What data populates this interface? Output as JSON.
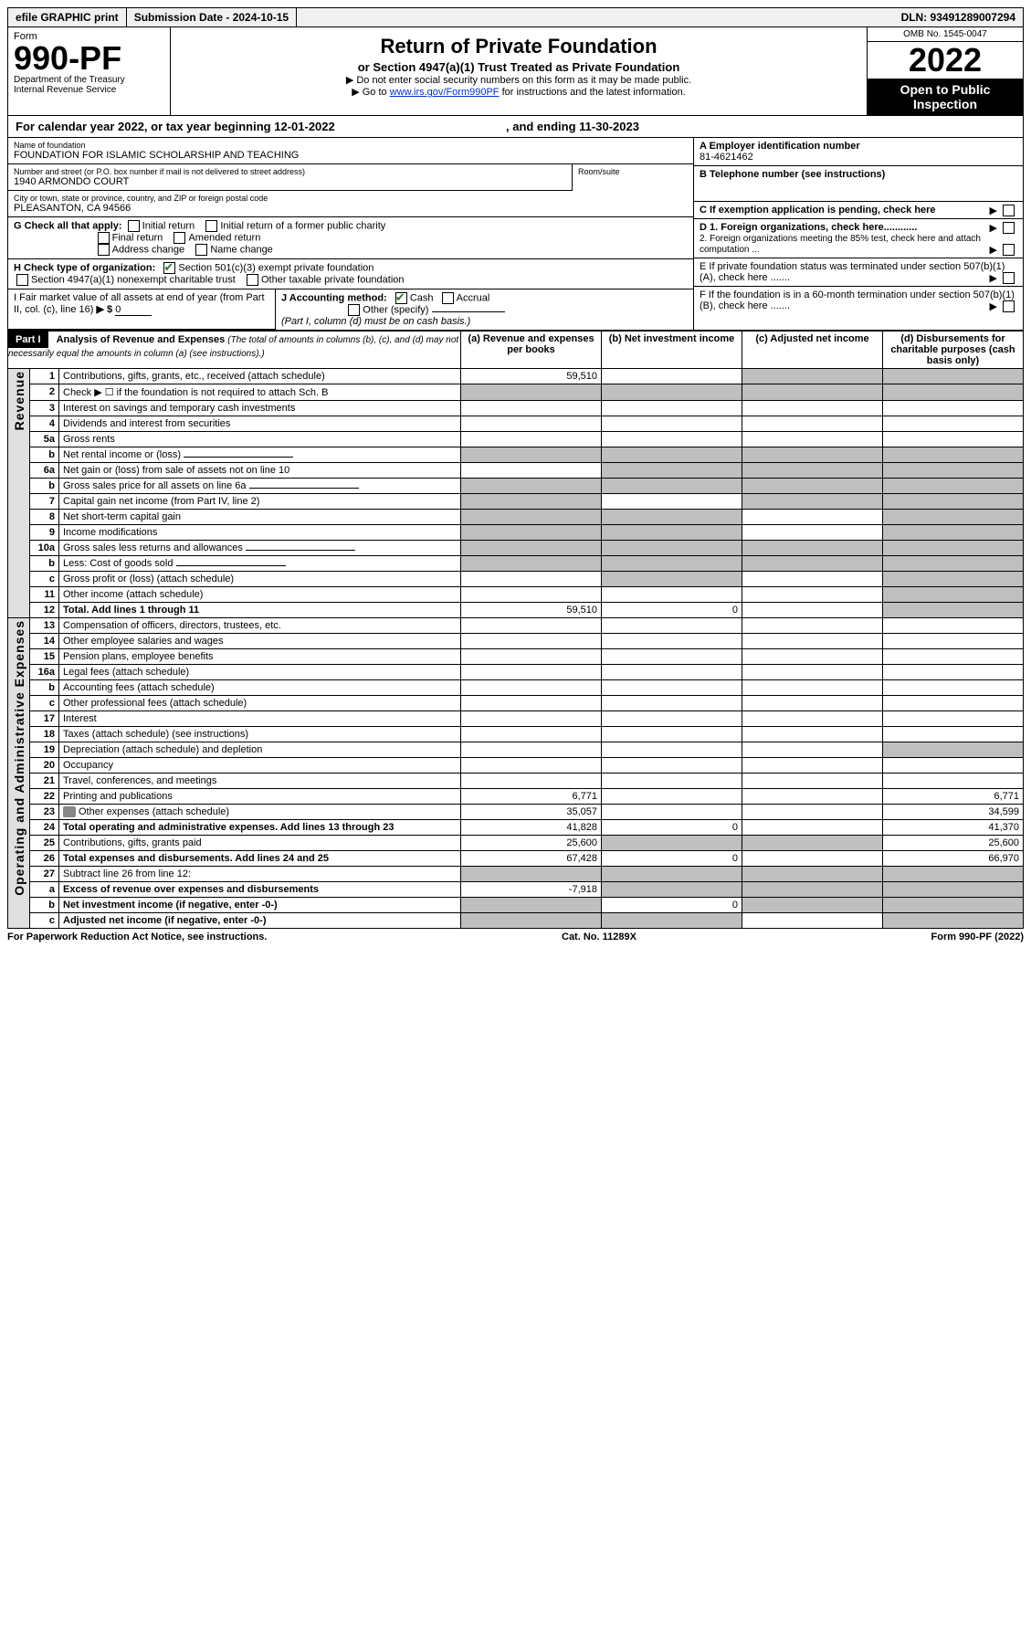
{
  "top_bar": {
    "efile": "efile GRAPHIC print",
    "submission": "Submission Date - 2024-10-15",
    "dln": "DLN: 93491289007294"
  },
  "header": {
    "form_label": "Form",
    "form_number": "990-PF",
    "dept1": "Department of the Treasury",
    "dept2": "Internal Revenue Service",
    "title": "Return of Private Foundation",
    "subtitle": "or Section 4947(a)(1) Trust Treated as Private Foundation",
    "instr1": "▶ Do not enter social security numbers on this form as it may be made public.",
    "instr2_pre": "▶ Go to ",
    "instr2_link": "www.irs.gov/Form990PF",
    "instr2_post": " for instructions and the latest information.",
    "omb": "OMB No. 1545-0047",
    "tax_year": "2022",
    "open_public": "Open to Public Inspection"
  },
  "cal_year": {
    "prefix": "For calendar year 2022, or tax year beginning ",
    "begin": "12-01-2022",
    "mid": " , and ending ",
    "end": "11-30-2023"
  },
  "entity": {
    "name_label": "Name of foundation",
    "name": "FOUNDATION FOR ISLAMIC SCHOLARSHIP AND TEACHING",
    "addr_label": "Number and street (or P.O. box number if mail is not delivered to street address)",
    "addr": "1940 ARMONDO COURT",
    "room_label": "Room/suite",
    "city_label": "City or town, state or province, country, and ZIP or foreign postal code",
    "city": "PLEASANTON, CA  94566",
    "ein_label": "A Employer identification number",
    "ein": "81-4621462",
    "phone_label": "B Telephone number (see instructions)",
    "c_label": "C If exemption application is pending, check here",
    "d1": "D 1. Foreign organizations, check here............",
    "d2": "2. Foreign organizations meeting the 85% test, check here and attach computation ...",
    "e_label": "E  If private foundation status was terminated under section 507(b)(1)(A), check here .......",
    "f_label": "F  If the foundation is in a 60-month termination under section 507(b)(1)(B), check here ......."
  },
  "g": {
    "label": "G Check all that apply:",
    "opts": [
      "Initial return",
      "Initial return of a former public charity",
      "Final return",
      "Amended return",
      "Address change",
      "Name change"
    ]
  },
  "h": {
    "label": "H Check type of organization:",
    "opt1": "Section 501(c)(3) exempt private foundation",
    "opt2": "Section 4947(a)(1) nonexempt charitable trust",
    "opt3": "Other taxable private foundation"
  },
  "i": {
    "label": "I Fair market value of all assets at end of year (from Part II, col. (c), line 16)",
    "arrow": "▶ $",
    "value": "0"
  },
  "j": {
    "label": "J Accounting method:",
    "cash": "Cash",
    "accrual": "Accrual",
    "other": "Other (specify)",
    "note": "(Part I, column (d) must be on cash basis.)"
  },
  "part1": {
    "badge": "Part I",
    "title": "Analysis of Revenue and Expenses",
    "title_note": " (The total of amounts in columns (b), (c), and (d) may not necessarily equal the amounts in column (a) (see instructions).)",
    "col_a": "(a)  Revenue and expenses per books",
    "col_b": "(b)  Net investment income",
    "col_c": "(c)  Adjusted net income",
    "col_d": "(d)  Disbursements for charitable purposes (cash basis only)"
  },
  "side_labels": {
    "revenue": "Revenue",
    "expenses": "Operating and Administrative Expenses"
  },
  "rows": [
    {
      "n": "1",
      "label": "Contributions, gifts, grants, etc., received (attach schedule)",
      "a": "59,510",
      "shade_b": false,
      "shade_c": true,
      "shade_d": true
    },
    {
      "n": "2",
      "label": "Check ▶ ☐ if the foundation is not required to attach Sch. B",
      "shade_a": true,
      "shade_b": true,
      "shade_c": true,
      "shade_d": true,
      "dots": true
    },
    {
      "n": "3",
      "label": "Interest on savings and temporary cash investments"
    },
    {
      "n": "4",
      "label": "Dividends and interest from securities",
      "dots": true
    },
    {
      "n": "5a",
      "label": "Gross rents",
      "dots": true
    },
    {
      "n": "b",
      "label": "Net rental income or (loss)",
      "inline_box": true,
      "shade_a": true,
      "shade_b": true,
      "shade_c": true,
      "shade_d": true
    },
    {
      "n": "6a",
      "label": "Net gain or (loss) from sale of assets not on line 10",
      "shade_b": true,
      "shade_c": true,
      "shade_d": true
    },
    {
      "n": "b",
      "label": "Gross sales price for all assets on line 6a",
      "inline_box": true,
      "shade_a": true,
      "shade_b": true,
      "shade_c": true,
      "shade_d": true
    },
    {
      "n": "7",
      "label": "Capital gain net income (from Part IV, line 2)",
      "dots": true,
      "shade_a": true,
      "shade_c": true,
      "shade_d": true
    },
    {
      "n": "8",
      "label": "Net short-term capital gain",
      "dots": true,
      "shade_a": true,
      "shade_b": true,
      "shade_d": true
    },
    {
      "n": "9",
      "label": "Income modifications",
      "dots": true,
      "shade_a": true,
      "shade_b": true,
      "shade_d": true
    },
    {
      "n": "10a",
      "label": "Gross sales less returns and allowances",
      "inline_box": true,
      "shade_a": true,
      "shade_b": true,
      "shade_c": true,
      "shade_d": true
    },
    {
      "n": "b",
      "label": "Less: Cost of goods sold",
      "dots": true,
      "inline_box": true,
      "shade_a": true,
      "shade_b": true,
      "shade_c": true,
      "shade_d": true
    },
    {
      "n": "c",
      "label": "Gross profit or (loss) (attach schedule)",
      "dots": true,
      "shade_b": true,
      "shade_d": true
    },
    {
      "n": "11",
      "label": "Other income (attach schedule)",
      "dots": true,
      "shade_d": true
    },
    {
      "n": "12",
      "label": "Total. Add lines 1 through 11",
      "bold": true,
      "dots": true,
      "a": "59,510",
      "b": "0",
      "shade_d": true
    },
    {
      "n": "13",
      "label": "Compensation of officers, directors, trustees, etc."
    },
    {
      "n": "14",
      "label": "Other employee salaries and wages",
      "dots": true
    },
    {
      "n": "15",
      "label": "Pension plans, employee benefits",
      "dots": true
    },
    {
      "n": "16a",
      "label": "Legal fees (attach schedule)",
      "dots": true
    },
    {
      "n": "b",
      "label": "Accounting fees (attach schedule)",
      "dots": true
    },
    {
      "n": "c",
      "label": "Other professional fees (attach schedule)",
      "dots": true
    },
    {
      "n": "17",
      "label": "Interest",
      "dots": true
    },
    {
      "n": "18",
      "label": "Taxes (attach schedule) (see instructions)",
      "dots": true
    },
    {
      "n": "19",
      "label": "Depreciation (attach schedule) and depletion",
      "dots": true,
      "shade_d": true
    },
    {
      "n": "20",
      "label": "Occupancy",
      "dots": true
    },
    {
      "n": "21",
      "label": "Travel, conferences, and meetings",
      "dots": true
    },
    {
      "n": "22",
      "label": "Printing and publications",
      "dots": true,
      "a": "6,771",
      "d": "6,771"
    },
    {
      "n": "23",
      "label": "Other expenses (attach schedule)",
      "dots": true,
      "icon": true,
      "a": "35,057",
      "d": "34,599"
    },
    {
      "n": "24",
      "label": "Total operating and administrative expenses. Add lines 13 through 23",
      "bold": true,
      "dots": true,
      "a": "41,828",
      "b": "0",
      "d": "41,370"
    },
    {
      "n": "25",
      "label": "Contributions, gifts, grants paid",
      "dots": true,
      "a": "25,600",
      "shade_b": true,
      "shade_c": true,
      "d": "25,600"
    },
    {
      "n": "26",
      "label": "Total expenses and disbursements. Add lines 24 and 25",
      "bold": true,
      "a": "67,428",
      "b": "0",
      "d": "66,970"
    },
    {
      "n": "27",
      "label": "Subtract line 26 from line 12:",
      "shade_a": true,
      "shade_b": true,
      "shade_c": true,
      "shade_d": true
    },
    {
      "n": "a",
      "label": "Excess of revenue over expenses and disbursements",
      "bold": true,
      "a": "-7,918",
      "shade_b": true,
      "shade_c": true,
      "shade_d": true
    },
    {
      "n": "b",
      "label": "Net investment income (if negative, enter -0-)",
      "bold": true,
      "shade_a": true,
      "b": "0",
      "shade_c": true,
      "shade_d": true
    },
    {
      "n": "c",
      "label": "Adjusted net income (if negative, enter -0-)",
      "bold": true,
      "dots": true,
      "shade_a": true,
      "shade_b": true,
      "shade_d": true
    }
  ],
  "footer": {
    "left": "For Paperwork Reduction Act Notice, see instructions.",
    "mid": "Cat. No. 11289X",
    "right": "Form 990-PF (2022)"
  }
}
